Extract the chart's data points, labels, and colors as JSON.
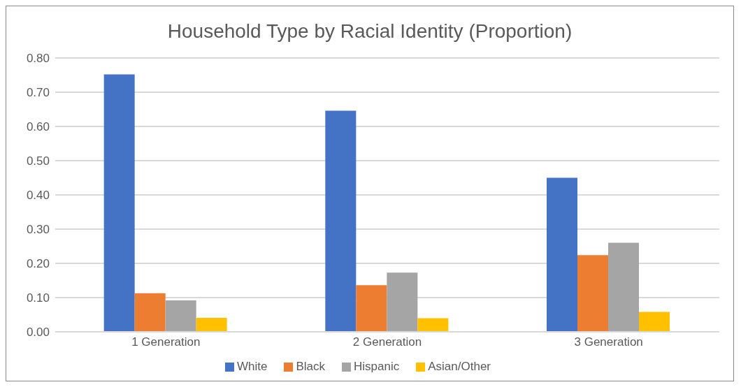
{
  "chart_data": {
    "type": "bar",
    "title": "Household Type by Racial Identity (Proportion)",
    "categories": [
      "1 Generation",
      "2 Generation",
      "3 Generation"
    ],
    "series": [
      {
        "name": "White",
        "color": "#4472c4",
        "values": [
          0.752,
          0.646,
          0.45
        ]
      },
      {
        "name": "Black",
        "color": "#ed7d31",
        "values": [
          0.113,
          0.136,
          0.224
        ]
      },
      {
        "name": "Hispanic",
        "color": "#a5a5a5",
        "values": [
          0.092,
          0.173,
          0.26
        ]
      },
      {
        "name": "Asian/Other",
        "color": "#ffc000",
        "values": [
          0.041,
          0.04,
          0.058
        ]
      }
    ],
    "ylim": [
      0,
      0.8
    ],
    "yticks": [
      {
        "value": 0,
        "label": "0.00"
      },
      {
        "value": 0.1,
        "label": "0.10"
      },
      {
        "value": 0.2,
        "label": "0.20"
      },
      {
        "value": 0.3,
        "label": "0.30"
      },
      {
        "value": 0.4,
        "label": "0.40"
      },
      {
        "value": 0.5,
        "label": "0.50"
      },
      {
        "value": 0.6,
        "label": "0.60"
      },
      {
        "value": 0.7,
        "label": "0.70"
      },
      {
        "value": 0.8,
        "label": "0.80"
      }
    ],
    "grid": "y",
    "legend": "bottom"
  }
}
